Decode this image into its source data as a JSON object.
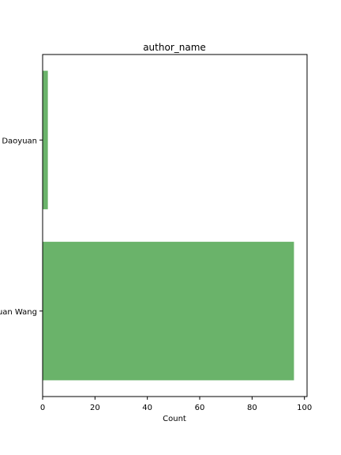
{
  "chart_data": {
    "type": "bar",
    "orientation": "horizontal",
    "title": "author_name",
    "xlabel": "Count",
    "ylabel": "",
    "categories": [
      "Daoyuan",
      "uan Wang"
    ],
    "values": [
      2,
      96
    ],
    "xlim": [
      0,
      101
    ],
    "xticks": [
      0,
      20,
      40,
      60,
      80,
      100
    ],
    "bar_color": "#6ab36a",
    "grid": false
  }
}
